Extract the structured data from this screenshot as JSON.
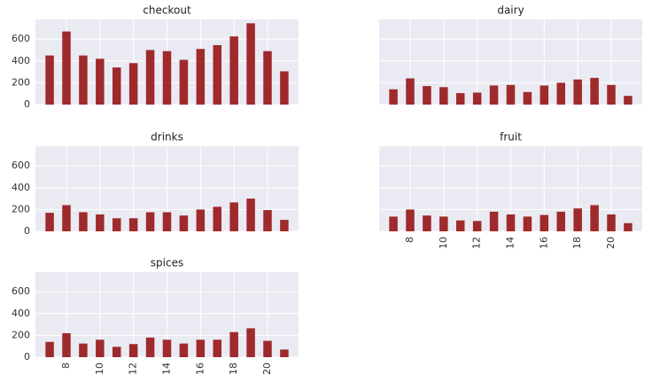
{
  "chart_data": [
    {
      "type": "bar",
      "title": "checkout",
      "color": "#9e2a2b",
      "grid": true,
      "ylim": [
        0,
        780
      ],
      "yticks": [
        0,
        200,
        400,
        600
      ],
      "values": [
        450,
        670,
        450,
        420,
        340,
        380,
        500,
        490,
        410,
        510,
        545,
        625,
        745,
        490,
        305
      ]
    },
    {
      "type": "bar",
      "title": "dairy",
      "color": "#9e2a2b",
      "grid": true,
      "ylim": [
        0,
        780
      ],
      "yticks": [
        0,
        200,
        400,
        600
      ],
      "values": [
        140,
        240,
        170,
        160,
        105,
        110,
        175,
        180,
        115,
        175,
        200,
        230,
        245,
        180,
        80
      ]
    },
    {
      "type": "bar",
      "title": "drinks",
      "color": "#9e2a2b",
      "grid": true,
      "ylim": [
        0,
        780
      ],
      "yticks": [
        0,
        200,
        400,
        600
      ],
      "values": [
        170,
        240,
        175,
        155,
        120,
        120,
        175,
        175,
        145,
        200,
        225,
        265,
        300,
        195,
        105
      ]
    },
    {
      "type": "bar",
      "title": "fruit",
      "color": "#9e2a2b",
      "grid": true,
      "ylim": [
        0,
        780
      ],
      "yticks": [
        0,
        200,
        400,
        600
      ],
      "categories": [
        null,
        "8",
        null,
        "10",
        null,
        "12",
        null,
        "14",
        null,
        "16",
        null,
        "18",
        null,
        "20",
        null
      ],
      "values": [
        135,
        200,
        145,
        135,
        100,
        95,
        180,
        155,
        135,
        150,
        180,
        210,
        240,
        155,
        75
      ]
    },
    {
      "type": "bar",
      "title": "spices",
      "color": "#9e2a2b",
      "grid": true,
      "ylim": [
        0,
        780
      ],
      "yticks": [
        0,
        200,
        400,
        600
      ],
      "categories": [
        null,
        "8",
        null,
        "10",
        null,
        "12",
        null,
        "14",
        null,
        "16",
        null,
        "18",
        null,
        "20",
        null
      ],
      "values": [
        140,
        220,
        125,
        160,
        95,
        120,
        180,
        160,
        125,
        160,
        160,
        230,
        265,
        150,
        70
      ]
    }
  ]
}
